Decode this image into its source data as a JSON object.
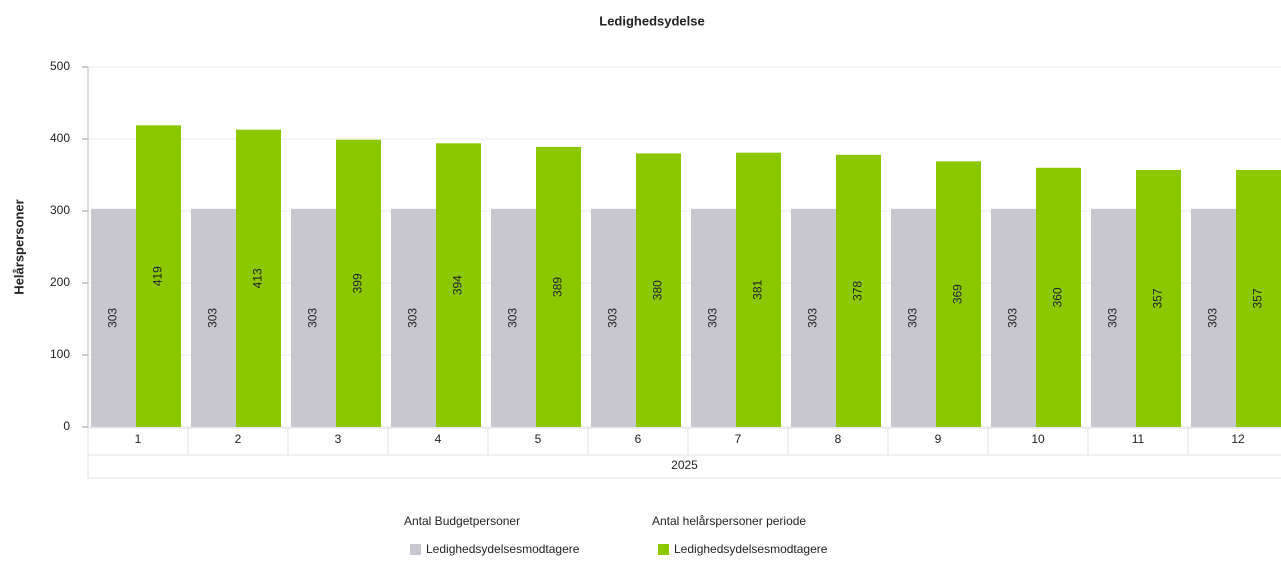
{
  "chart_data": {
    "type": "bar",
    "title": "Ledighedsydelse",
    "y_label": "Helårspersoner",
    "categories": [
      "1",
      "2",
      "3",
      "4",
      "5",
      "6",
      "7",
      "8",
      "9",
      "10",
      "11",
      "12"
    ],
    "category_group": "2025",
    "series": [
      {
        "name": "Ledighedsydelsesmodtagere",
        "group": "Antal Budgetpersoner",
        "color": "#c8c6ce",
        "values": [
          303,
          303,
          303,
          303,
          303,
          303,
          303,
          303,
          303,
          303,
          303,
          303
        ]
      },
      {
        "name": "Ledighedsydelsesmodtagere",
        "group": "Antal helårspersoner periode",
        "color": "#8cc800",
        "values": [
          419,
          413,
          399,
          394,
          389,
          380,
          381,
          378,
          369,
          360,
          357,
          357
        ]
      }
    ],
    "ylim": [
      0,
      500
    ],
    "yticks": [
      0,
      100,
      200,
      300,
      400,
      500
    ],
    "grid": true
  }
}
